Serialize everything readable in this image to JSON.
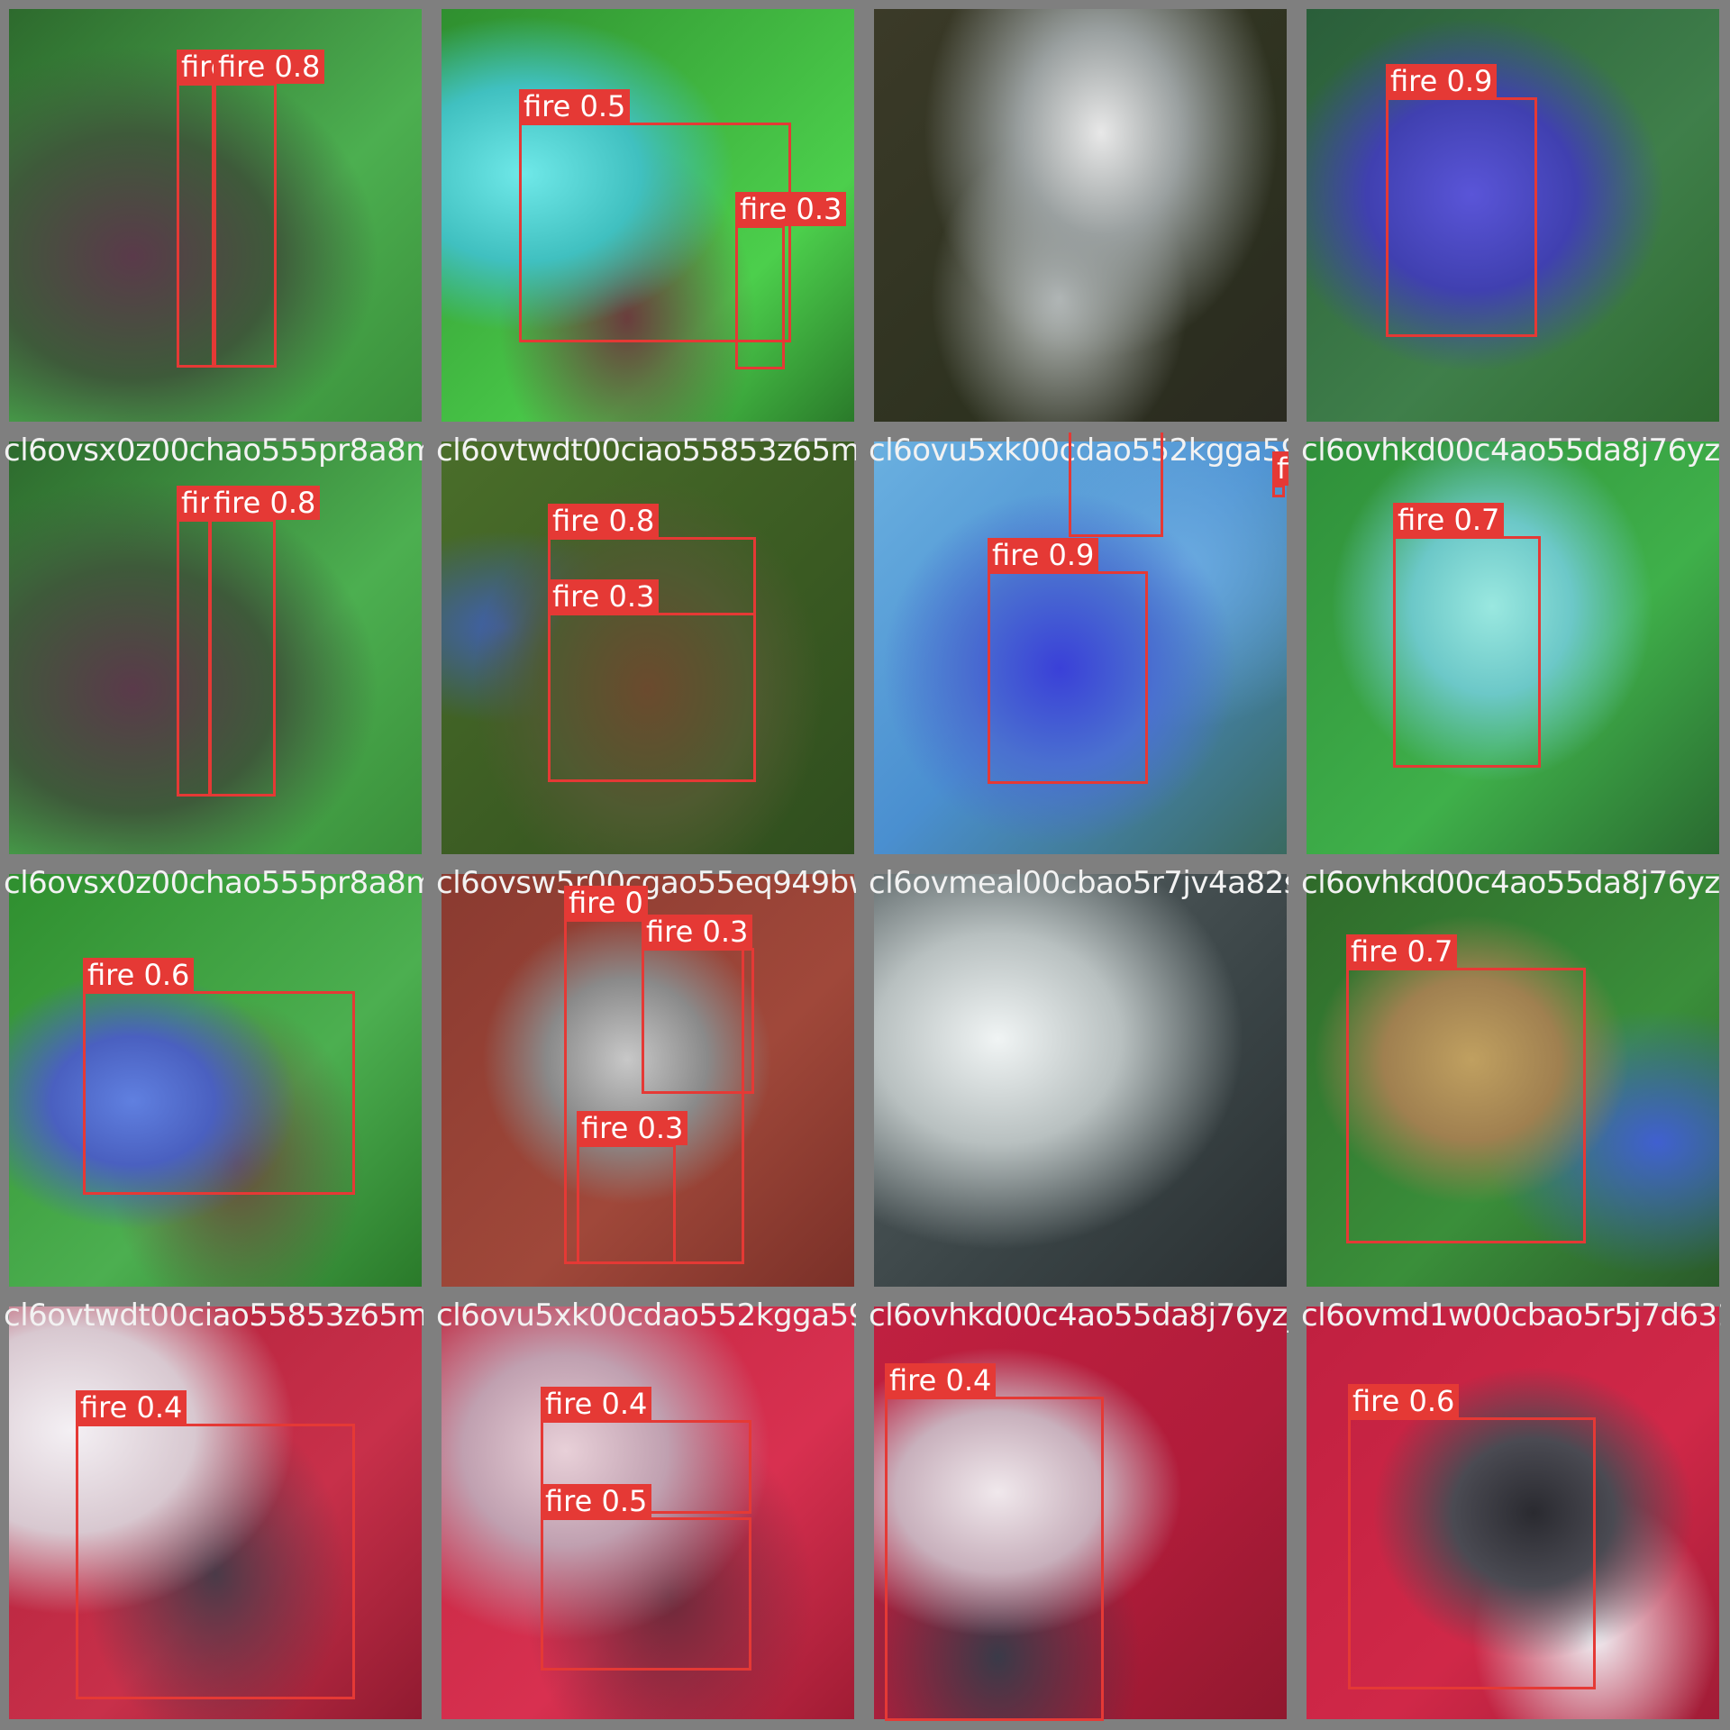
{
  "grid": {
    "rows": 4,
    "cols": 4
  },
  "tiles": [
    {
      "label": "",
      "palette": "green",
      "detections": [
        {
          "tag": "fire 0.6"
        },
        {
          "tag": "fire 0.8"
        }
      ]
    },
    {
      "label": "",
      "palette": "cyan-green",
      "detections": [
        {
          "tag": "fire 0.5"
        },
        {
          "tag": "fire 0.3"
        }
      ]
    },
    {
      "label": "",
      "palette": "smoke-dark",
      "detections": []
    },
    {
      "label": "",
      "palette": "blue-green",
      "detections": [
        {
          "tag": "fire 0.9"
        }
      ]
    },
    {
      "label": "cl6ovsx0z00chao555pr8a8md_l4_FALSE_COLOR",
      "palette": "green",
      "detections": [
        {
          "tag": "fire 0.7"
        },
        {
          "tag": "fire 0.8"
        }
      ]
    },
    {
      "label": "cl6ovtwdt00ciao55853z65mc_l6_SWIR_jpg",
      "palette": "olive",
      "detections": [
        {
          "tag": "fire 0.8"
        },
        {
          "tag": "fire 0.3"
        }
      ]
    },
    {
      "label": "cl6ovu5xk00cdao552kgga59g_l1_TRUE_COLOR",
      "palette": "blue",
      "detections": [
        {
          "tag": "fire 0.4"
        },
        {
          "tag": "fire 0.3"
        },
        {
          "tag": "fire 0.9"
        }
      ]
    },
    {
      "label": "cl6ovhkd00c4ao55da8j76yz",
      "palette": "green-cyan",
      "detections": [
        {
          "tag": "fire 0.7"
        }
      ]
    },
    {
      "label": "cl6ovsx0z00chao555pr8a8md_l6_SWIR_jpg",
      "palette": "green-cloud",
      "detections": [
        {
          "tag": "fire 0.6"
        }
      ]
    },
    {
      "label": "cl6ovsw5r00cgao55eq949bw6_l1_TRUE_COLOR",
      "palette": "red-river",
      "detections": [
        {
          "tag": "fire 0"
        },
        {
          "tag": "fire 0.3"
        },
        {
          "tag": "fire 0.3"
        }
      ]
    },
    {
      "label": "cl6ovmeal00cbao5r7jv4a82sl_l4_FALSE_COLOR",
      "palette": "gray-smoke",
      "detections": []
    },
    {
      "label": "cl6ovhkd00c4ao55da8j76yz",
      "palette": "green-burn",
      "detections": [
        {
          "tag": "fire 0.7"
        }
      ]
    },
    {
      "label": "cl6ovtwdt00ciao55853z65mc",
      "palette": "red-cloud",
      "detections": [
        {
          "tag": "fire 0.4"
        }
      ]
    },
    {
      "label": "cl6ovu5xk00cdao552kgga59g",
      "palette": "red-smoke",
      "detections": [
        {
          "tag": "fire 0.4"
        },
        {
          "tag": "fire 0.5"
        }
      ]
    },
    {
      "label": "cl6ovhkd00c4ao55da8j76yz_l2_FALSE_COLOR",
      "palette": "red-river2",
      "detections": [
        {
          "tag": "fire 0.4"
        }
      ]
    },
    {
      "label": "cl6ovmd1w00cbao5r5j7d631zt_l1_TRUE_COLOR",
      "palette": "red-dark",
      "detections": [
        {
          "tag": "fire 0.6"
        }
      ]
    }
  ],
  "colors": {
    "box": "#e53935",
    "border": "#7f7f7f",
    "label_text": "#f2f2f2"
  }
}
